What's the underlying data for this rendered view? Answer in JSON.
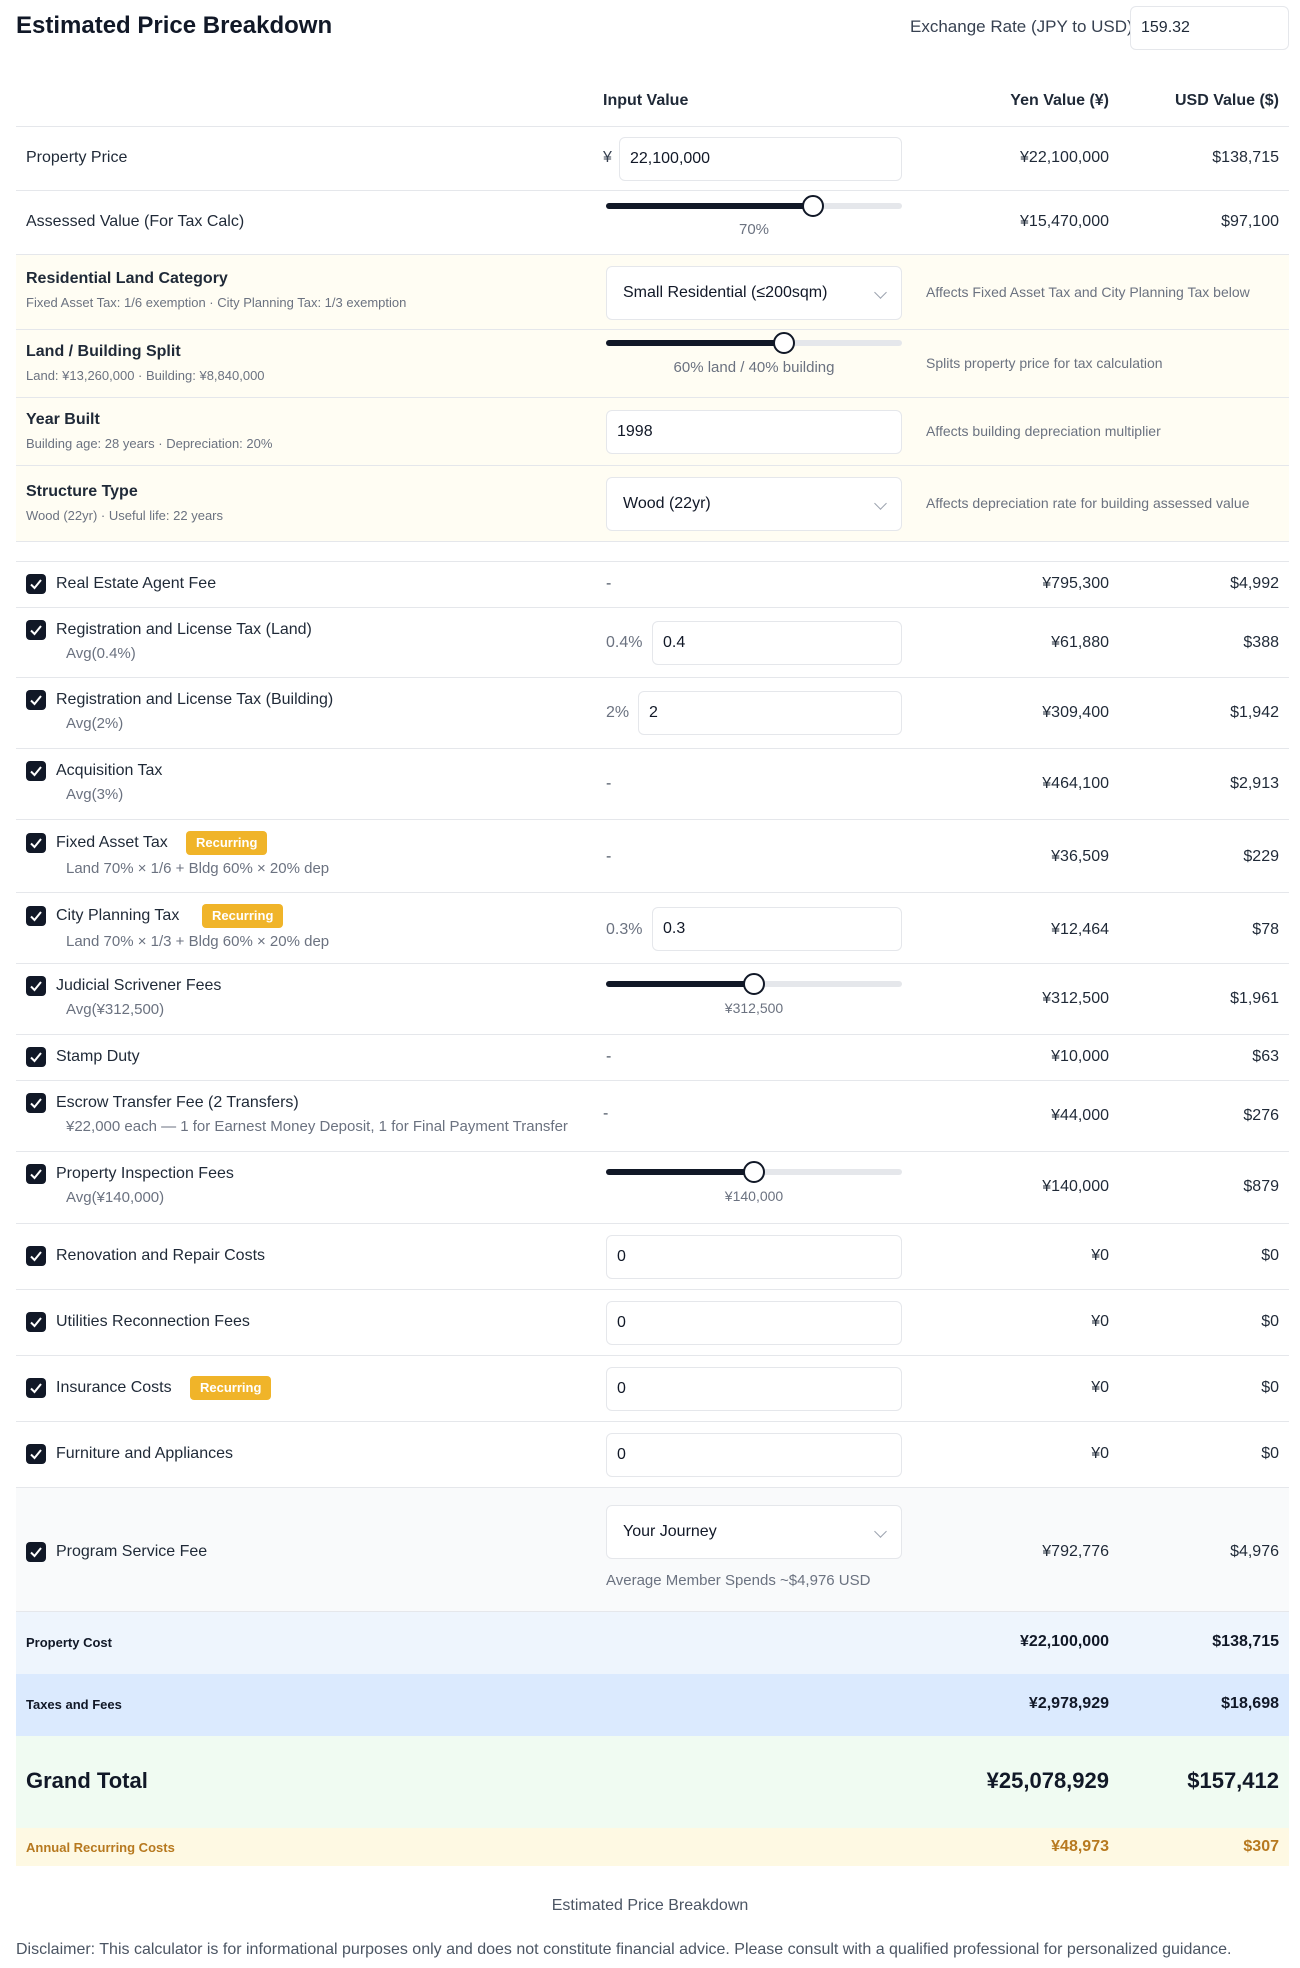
{
  "header": {
    "title": "Estimated Price Breakdown",
    "exchange_label": "Exchange Rate (JPY to USD)",
    "exchange_value": "159.32"
  },
  "columns": {
    "input": "Input Value",
    "yen": "Yen Value (¥)",
    "usd": "USD Value ($)"
  },
  "property_price": {
    "label": "Property Price",
    "currency_symbol": "¥",
    "input_value": "22,100,000",
    "yen": "¥22,100,000",
    "usd": "$138,715"
  },
  "assessed_value": {
    "label": "Assessed Value (For Tax Calc)",
    "slider_percent": 70,
    "caption": "70%",
    "yen": "¥15,470,000",
    "usd": "$97,100"
  },
  "land_category": {
    "label": "Residential Land Category",
    "sub": "Fixed Asset Tax: 1/6 exemption · City Planning Tax: 1/3 exemption",
    "selected": "Small Residential (≤200sqm)",
    "note": "Affects Fixed Asset Tax and City Planning Tax below"
  },
  "land_split": {
    "label": "Land / Building Split",
    "sub": "Land: ¥13,260,000 · Building: ¥8,840,000",
    "slider_percent": 60,
    "caption": "60% land / 40% building",
    "note": "Splits property price for tax calculation"
  },
  "year_built": {
    "label": "Year Built",
    "sub": "Building age: 28 years · Depreciation: 20%",
    "value": "1998",
    "note": "Affects building depreciation multiplier"
  },
  "structure_type": {
    "label": "Structure Type",
    "sub": "Wood (22yr) · Useful life: 22 years",
    "selected": "Wood (22yr)",
    "note": "Affects depreciation rate for building assessed value"
  },
  "fees": [
    {
      "label": "Real Estate Agent Fee",
      "input": "-",
      "yen": "¥795,300",
      "usd": "$4,992"
    },
    {
      "label": "Registration and License Tax (Land)",
      "sub": "Avg(0.4%)",
      "rate": "0.4%",
      "value": "0.4",
      "yen": "¥61,880",
      "usd": "$388"
    },
    {
      "label": "Registration and License Tax (Building)",
      "sub": "Avg(2%)",
      "rate": "2%",
      "value": "2",
      "yen": "¥309,400",
      "usd": "$1,942"
    },
    {
      "label": "Acquisition Tax",
      "sub": "Avg(3%)",
      "input": "-",
      "yen": "¥464,100",
      "usd": "$2,913"
    },
    {
      "label": "Fixed Asset Tax",
      "badge": "Recurring",
      "sub": "Land 70% × 1/6 + Bldg 60% × 20% dep",
      "input": "-",
      "yen": "¥36,509",
      "usd": "$229"
    },
    {
      "label": "City Planning Tax",
      "badge": "Recurring",
      "sub": "Land 70% × 1/3 + Bldg 60% × 20% dep",
      "rate": "0.3%",
      "value": "0.3",
      "yen": "¥12,464",
      "usd": "$78"
    },
    {
      "label": "Judicial Scrivener Fees",
      "sub": "Avg(¥312,500)",
      "slider_percent": 50,
      "caption": "¥312,500",
      "yen": "¥312,500",
      "usd": "$1,961"
    },
    {
      "label": "Stamp Duty",
      "input": "-",
      "yen": "¥10,000",
      "usd": "$63"
    },
    {
      "label": "Escrow Transfer Fee (2 Transfers)",
      "sub": "¥22,000 each — 1 for Earnest Money Deposit, 1 for Final Payment Transfer",
      "input": "-",
      "yen": "¥44,000",
      "usd": "$276"
    },
    {
      "label": "Property Inspection Fees",
      "sub": "Avg(¥140,000)",
      "slider_percent": 50,
      "caption": "¥140,000",
      "yen": "¥140,000",
      "usd": "$879"
    },
    {
      "label": "Renovation and Repair Costs",
      "value": "0",
      "yen": "¥0",
      "usd": "$0"
    },
    {
      "label": "Utilities Reconnection Fees",
      "value": "0",
      "yen": "¥0",
      "usd": "$0"
    },
    {
      "label": "Insurance Costs",
      "badge": "Recurring",
      "value": "0",
      "yen": "¥0",
      "usd": "$0"
    },
    {
      "label": "Furniture and Appliances",
      "value": "0",
      "yen": "¥0",
      "usd": "$0"
    }
  ],
  "program_fee": {
    "label": "Program Service Fee",
    "selected": "Your Journey",
    "caption": "Average Member Spends ~$4,976 USD",
    "yen": "¥792,776",
    "usd": "$4,976"
  },
  "summary": {
    "property_cost": {
      "label": "Property Cost",
      "yen": "¥22,100,000",
      "usd": "$138,715"
    },
    "taxes_fees": {
      "label": "Taxes and Fees",
      "yen": "¥2,978,929",
      "usd": "$18,698"
    },
    "grand_total": {
      "label": "Grand Total",
      "yen": "¥25,078,929",
      "usd": "$157,412"
    },
    "annual_recurring": {
      "label": "Annual Recurring Costs",
      "yen": "¥48,973",
      "usd": "$307"
    }
  },
  "footer": {
    "title": "Estimated Price Breakdown",
    "disclaimer": "Disclaimer: This calculator is for informational purposes only and does not constitute financial advice. Please consult with a qualified professional for personalized guidance."
  },
  "colors": {
    "accent": "#111827",
    "badge": "#f0b429",
    "highlight_yellow": "#fffdf3",
    "property_cost_bg": "#eef5fd",
    "taxes_bg": "#dbeafe",
    "grand_total_bg": "#f0fbf2",
    "recurring_bg": "#fef9e3",
    "recurring_text": "#b7791f"
  }
}
